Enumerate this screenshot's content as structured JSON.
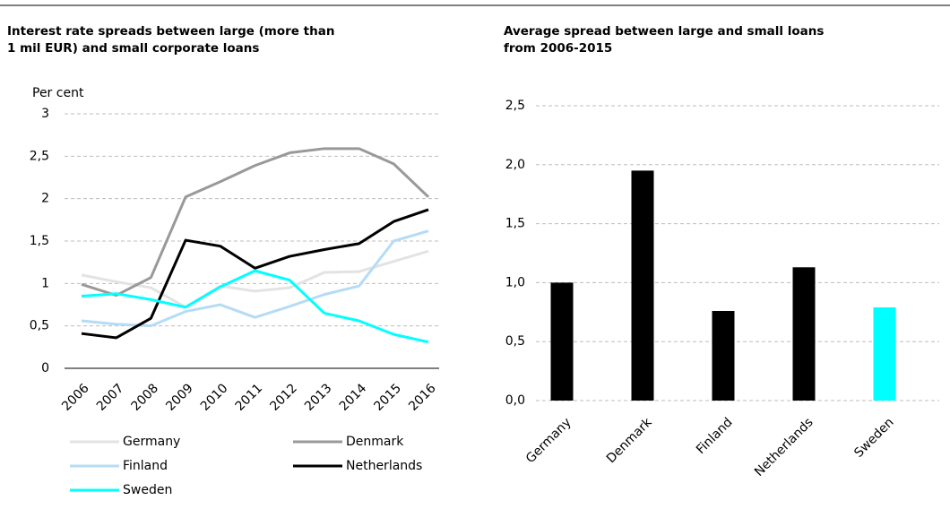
{
  "chart_data": [
    {
      "type": "line",
      "title": [
        "Interest rate spreads between large (more than",
        "1 mil EUR) and small corporate loans"
      ],
      "y_label": "Per cent",
      "categories": [
        "2006",
        "2007",
        "2008",
        "2009",
        "2010",
        "2011",
        "2012",
        "2013",
        "2014",
        "2015",
        "2016"
      ],
      "ylim": [
        0,
        3
      ],
      "yticks": [
        0,
        {
          "value": 0.5,
          "label": "0,5"
        },
        1,
        {
          "value": 1.5,
          "label": "1,5"
        },
        2,
        {
          "value": 2.5,
          "label": "2,5"
        },
        3
      ],
      "grid": true,
      "series": [
        {
          "name": "Germany",
          "color": "#e3e3e3",
          "values": [
            1.1,
            1.02,
            0.95,
            0.72,
            0.97,
            0.91,
            0.95,
            1.13,
            1.14,
            1.26,
            1.38
          ]
        },
        {
          "name": "Denmark",
          "color": "#999999",
          "values": [
            0.99,
            0.86,
            1.07,
            2.02,
            2.2,
            2.39,
            2.54,
            2.59,
            2.59,
            2.41,
            2.02
          ]
        },
        {
          "name": "Finland",
          "color": "#b5dcf5",
          "values": [
            0.56,
            0.52,
            0.5,
            0.67,
            0.75,
            0.6,
            0.73,
            0.87,
            0.97,
            1.5,
            1.62
          ]
        },
        {
          "name": "Netherlands",
          "color": "#000000",
          "values": [
            0.41,
            0.36,
            0.59,
            1.51,
            1.44,
            1.18,
            1.32,
            1.4,
            1.47,
            1.73,
            1.87
          ]
        },
        {
          "name": "Sweden",
          "color": "#00ffff",
          "values": [
            0.85,
            0.88,
            0.81,
            0.72,
            0.96,
            1.15,
            1.04,
            0.65,
            0.56,
            0.4,
            0.31
          ]
        }
      ]
    },
    {
      "type": "bar",
      "title": [
        "Average spread between large and small loans",
        "from 2006-2015"
      ],
      "categories": [
        "Germany",
        "Denmark",
        "Finland",
        "Netherlands",
        "Sweden"
      ],
      "values": [
        1.0,
        1.95,
        0.76,
        1.13,
        0.79
      ],
      "colors": [
        "#000000",
        "#000000",
        "#000000",
        "#000000",
        "#00ffff"
      ],
      "ylim": [
        0,
        2.5
      ],
      "yticks": [
        {
          "value": 0,
          "label": "0,0"
        },
        {
          "value": 0.5,
          "label": "0,5"
        },
        {
          "value": 1,
          "label": "1,0"
        },
        {
          "value": 1.5,
          "label": "1,5"
        },
        {
          "value": 2,
          "label": "2,0"
        },
        {
          "value": 2.5,
          "label": "2,5"
        }
      ],
      "grid": true
    }
  ]
}
